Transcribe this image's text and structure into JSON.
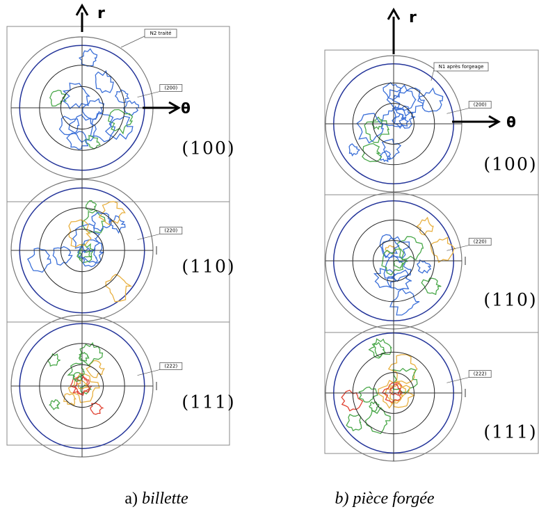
{
  "panels": [
    {
      "r_label": "r",
      "theta_label": "θ",
      "sample_label": "N2 traité",
      "rows": [
        {
          "reflection": "(200)",
          "plane": "(100)"
        },
        {
          "reflection": "(220)",
          "plane": "(110)"
        },
        {
          "reflection": "(222)",
          "plane": "(111)"
        }
      ],
      "caption_prefix": "a)",
      "caption": "billette"
    },
    {
      "r_label": "r",
      "theta_label": "θ",
      "sample_label": "N1 après forgeage",
      "rows": [
        {
          "reflection": "(200)",
          "plane": "(100)"
        },
        {
          "reflection": "(220)",
          "plane": "(110)"
        },
        {
          "reflection": "(222)",
          "plane": "(111)"
        }
      ],
      "caption_prefix": "b)",
      "caption": "pièce forgée"
    }
  ]
}
